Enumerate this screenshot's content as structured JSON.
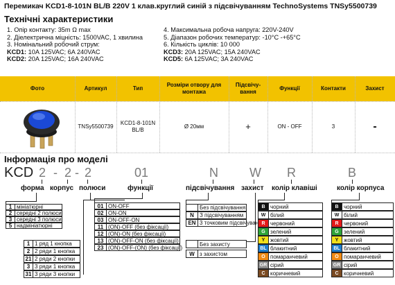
{
  "title": "Перемикач KCD1-8-101N BL/B 220V 1 клав.круглий синій з підсвічуванням TechnoSystems TNSy5500739",
  "specs_heading": "Технічні характеристики",
  "specs_left": [
    "1. Опір контакту: 35m Ω  max",
    "2. Діелектрична міцність:  1500VAC, 1 хвилина",
    "3. Номінальний робочий струм:"
  ],
  "specs_right": [
    "4. Максимальна робоча напруга: 220V-240V",
    "5. Діапазон робочих температур: -10°C -+65°C",
    "6. Кількість циклів: 10 000"
  ],
  "kcd": {
    "k1": "KCD1:",
    "v1": " 10A 125VAC; 6A 240VAC",
    "k2": "KCD2:",
    "v2": " 20A 125VAC; 16A 240VAC",
    "k3": "KCD3:",
    "v3": " 20A 125VAC; 15A 240VAC",
    "k5": "KCD5:",
    "v5": " 6A 125VAC; 3A 240VAC"
  },
  "table": {
    "headers": [
      "Фото",
      "Артикул",
      "Тип",
      "Розміри отвору для монтажа",
      "Підсвічу-вання",
      "Функції",
      "Контакти",
      "Захист"
    ],
    "row": {
      "article": "TNSy5500739",
      "type": "KCD1-8-101N BL/B",
      "hole": "Ø 20мм",
      "light": "+",
      "function": "ON - OFF",
      "contacts": "3",
      "protect": "-"
    }
  },
  "model_heading": "Інформація про моделі",
  "model_code": {
    "prefix": "KCD",
    "form": "2",
    "housing": "2",
    "poles": "2",
    "func": "01",
    "light": "N",
    "prot": "W",
    "keycol": "R",
    "bodycol": "B",
    "dash": "-"
  },
  "labels": {
    "form": "форма",
    "housing": "корпус",
    "poles": "полюси",
    "func": "функції",
    "light": "підсвічування",
    "prot": "захист",
    "keycol": "колір клавіші",
    "bodycol": "колір корпуса"
  },
  "forms": [
    {
      "k": "1",
      "t": "мініатюрні"
    },
    {
      "k": "2",
      "t": "середні 2 полюси"
    },
    {
      "k": "3",
      "t": "середні 3 полюси"
    },
    {
      "k": "5",
      "t": "надмініатюрні"
    }
  ],
  "poles": [
    {
      "k": "1",
      "t": "1 ряд 1 кнопка"
    },
    {
      "k": "2",
      "t": "2 ряди 1 кнопка"
    },
    {
      "k": "21",
      "t": "2 ряди 2 кнопки"
    },
    {
      "k": "3",
      "t": "3 ряди 1 кнопка"
    },
    {
      "k": "31",
      "t": "3 ряди 3 кнопки"
    }
  ],
  "funcs": [
    {
      "k": "01",
      "t": "ON-OFF"
    },
    {
      "k": "02",
      "t": "ON-ON"
    },
    {
      "k": "03",
      "t": "ON-OFF-ON"
    },
    {
      "k": "11",
      "t": "(ON)-OFF (без фіксації)"
    },
    {
      "k": "12",
      "t": "(ON)-ON (без фіксації)"
    },
    {
      "k": "13",
      "t": "(ON)-OFF-ON (без фіксації)"
    },
    {
      "k": "23",
      "t": "(ON)-OFF-(ON) (без фіксації)"
    }
  ],
  "lights": [
    {
      "k": "",
      "t": "Без підсвічування"
    },
    {
      "k": "N",
      "t": "З підсвічуванням"
    },
    {
      "k": "EN",
      "t": "3 точковим підсвічуванням"
    }
  ],
  "prots": [
    {
      "k": "",
      "t": "Без захисту"
    },
    {
      "k": "W",
      "t": "з захистом"
    }
  ],
  "colors": [
    {
      "k": "B",
      "t": "чорний",
      "c": "#111111"
    },
    {
      "k": "W",
      "t": "білий",
      "c": "#ffffff"
    },
    {
      "k": "R",
      "t": "червоний",
      "c": "#e31b1b"
    },
    {
      "k": "G",
      "t": "зелений",
      "c": "#2ea43a"
    },
    {
      "k": "Y",
      "t": "жовтий",
      "c": "#f3e01a"
    },
    {
      "k": "BL",
      "t": "блакитний",
      "c": "#1f7fd0"
    },
    {
      "k": "O",
      "t": "помаранчевий",
      "c": "#f28a12"
    },
    {
      "k": "GR",
      "t": "сірий",
      "c": "#8c8c8c"
    },
    {
      "k": "C",
      "t": "коричневий",
      "c": "#7a4a22"
    }
  ]
}
